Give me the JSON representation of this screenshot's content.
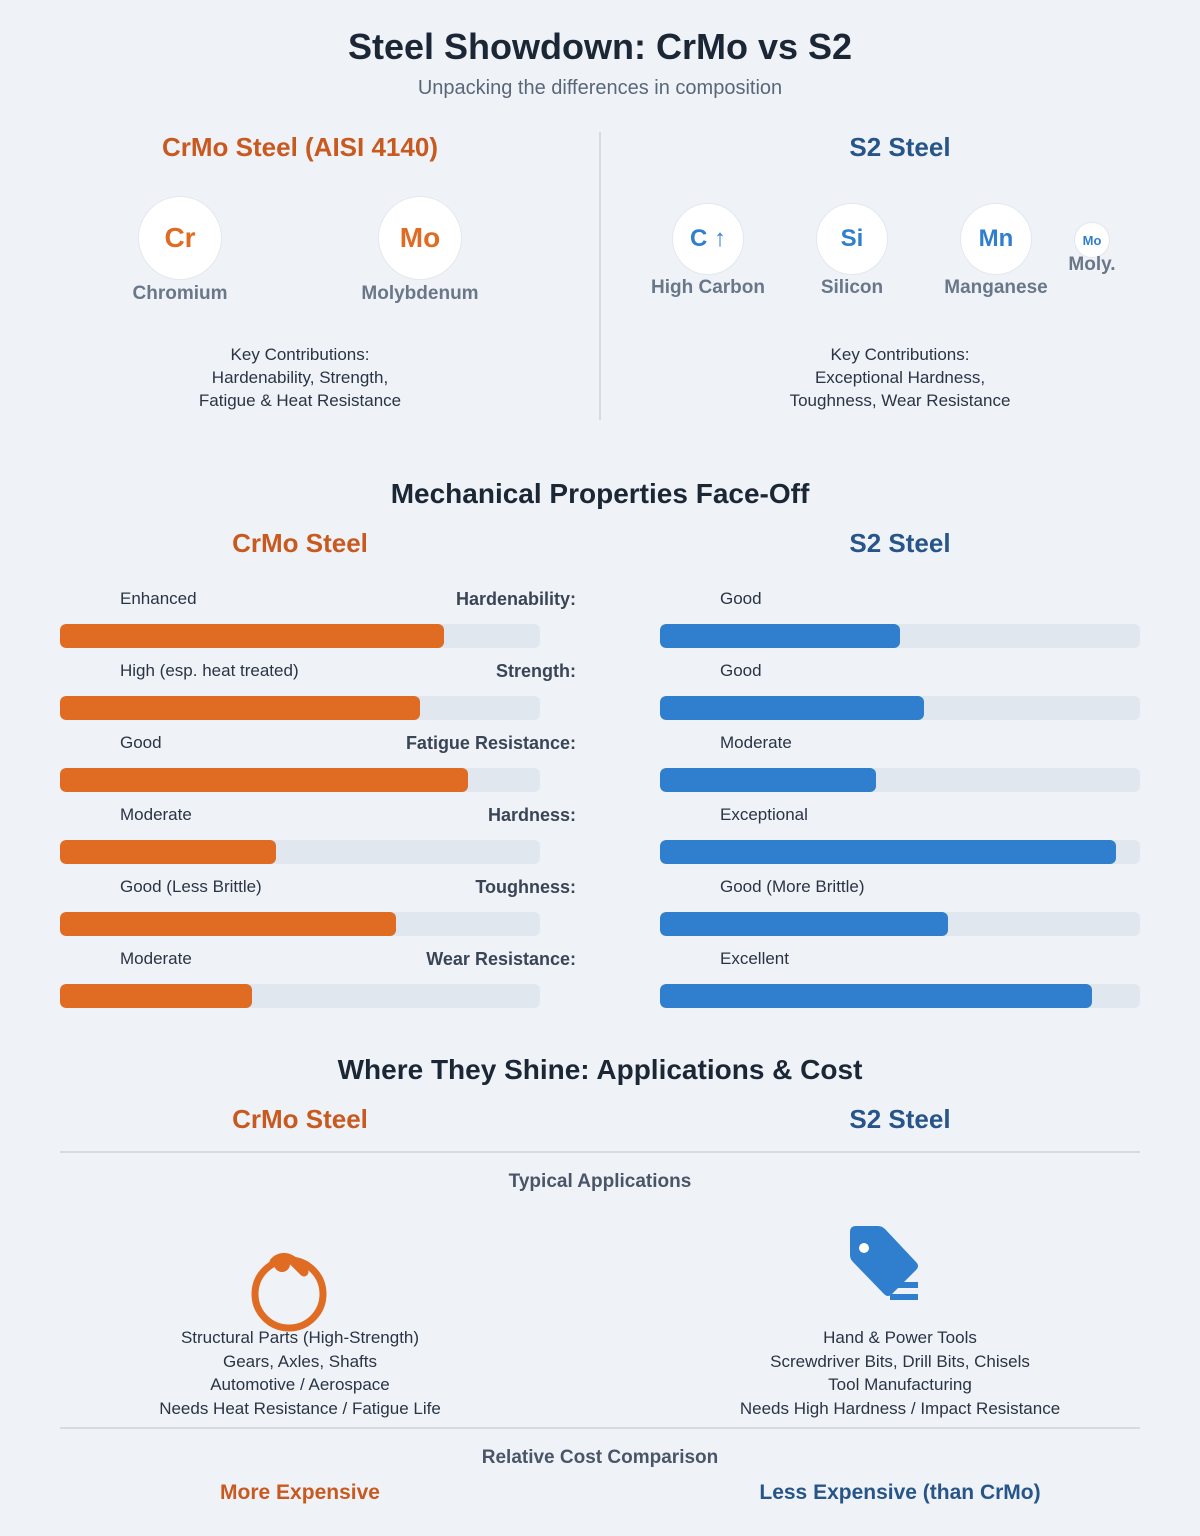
{
  "header": {
    "title": "Steel Showdown: CrMo vs S2",
    "subtitle": "Unpacking the differences in composition"
  },
  "composition": {
    "crmo": {
      "heading": "CrMo Steel (AISI 4140)",
      "elements": [
        {
          "symbol": "Cr",
          "label": "Chromium"
        },
        {
          "symbol": "Mo",
          "label": "Molybdenum"
        }
      ],
      "contributions": [
        "Key Contributions:",
        "Hardenability, Strength,",
        "Fatigue & Heat Resistance"
      ]
    },
    "s2": {
      "heading": "S2 Steel",
      "elements": [
        {
          "symbol": "C ↑",
          "label": "High Carbon"
        },
        {
          "symbol": "Si",
          "label": "Silicon"
        },
        {
          "symbol": "Mn",
          "label": "Manganese"
        },
        {
          "symbol": "Mo",
          "label": "Moly."
        }
      ],
      "contributions": [
        "Key Contributions:",
        "Exceptional Hardness,",
        "Toughness, Wear Resistance"
      ]
    }
  },
  "mechanical": {
    "title": "Mechanical Properties Face-Off",
    "crmo_heading": "CrMo Steel",
    "s2_heading": "S2 Steel",
    "properties": [
      {
        "name": "Hardenability:",
        "crmo_value": "Enhanced",
        "crmo_level": 0.8,
        "s2_value": "Good",
        "s2_level": 0.5
      },
      {
        "name": "Strength:",
        "crmo_value": "High (esp. heat treated)",
        "crmo_level": 0.75,
        "s2_value": "Good",
        "s2_level": 0.55
      },
      {
        "name": "Fatigue Resistance:",
        "crmo_value": "Good",
        "crmo_level": 0.85,
        "s2_value": "Moderate",
        "s2_level": 0.45
      },
      {
        "name": "Hardness:",
        "crmo_value": "Moderate",
        "crmo_level": 0.45,
        "s2_value": "Exceptional",
        "s2_level": 0.95
      },
      {
        "name": "Toughness:",
        "crmo_value": "Good (Less Brittle)",
        "crmo_level": 0.7,
        "s2_value": "Good (More Brittle)",
        "s2_level": 0.6
      },
      {
        "name": "Wear Resistance:",
        "crmo_value": "Moderate",
        "crmo_level": 0.4,
        "s2_value": "Excellent",
        "s2_level": 0.9
      }
    ]
  },
  "applications": {
    "title": "Where They Shine: Applications & Cost",
    "crmo_heading": "CrMo Steel",
    "s2_heading": "S2 Steel",
    "typical_label": "Typical Applications",
    "crmo_icon": "gear-ring-icon",
    "s2_icon": "tag-icon",
    "crmo_list": [
      "Structural Parts (High-Strength)",
      "Gears, Axles, Shafts",
      "Automotive / Aerospace",
      "Needs Heat Resistance / Fatigue Life"
    ],
    "s2_list": [
      "Hand & Power Tools",
      "Screwdriver Bits, Drill Bits, Chisels",
      "Tool Manufacturing",
      "Needs High Hardness / Impact Resistance"
    ],
    "cost_label": "Relative Cost Comparison",
    "crmo_cost": "More Expensive",
    "s2_cost": "Less Expensive (than CrMo)"
  },
  "colors": {
    "crmo_accent": "#e06b22",
    "s2_accent": "#2f7fce",
    "crmo_heading": "#c8591f",
    "s2_heading": "#275589"
  }
}
